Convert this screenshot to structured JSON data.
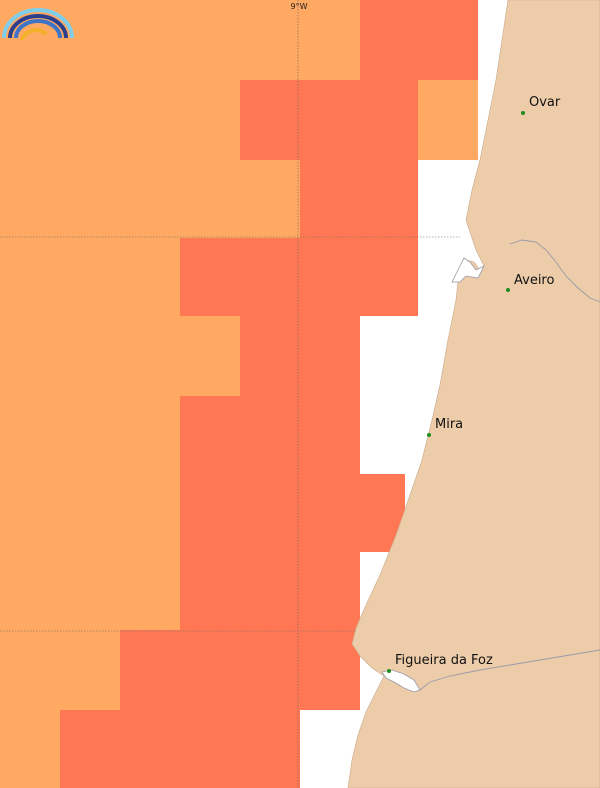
{
  "colors": {
    "sea_light": "#FFA963",
    "sea_dark": "#FF7853",
    "land": "#EDCCAA",
    "river": "#9A9AA8",
    "gridline": "#666666",
    "city_dot": "#1E8C1E"
  },
  "graticule": {
    "lon_label": "9°W"
  },
  "cities": [
    {
      "name": "Ovar"
    },
    {
      "name": "Aveiro"
    },
    {
      "name": "Mira"
    },
    {
      "name": "Figueira da Foz"
    }
  ],
  "logo": {
    "icon": "rainbow-arc-logo-icon"
  }
}
